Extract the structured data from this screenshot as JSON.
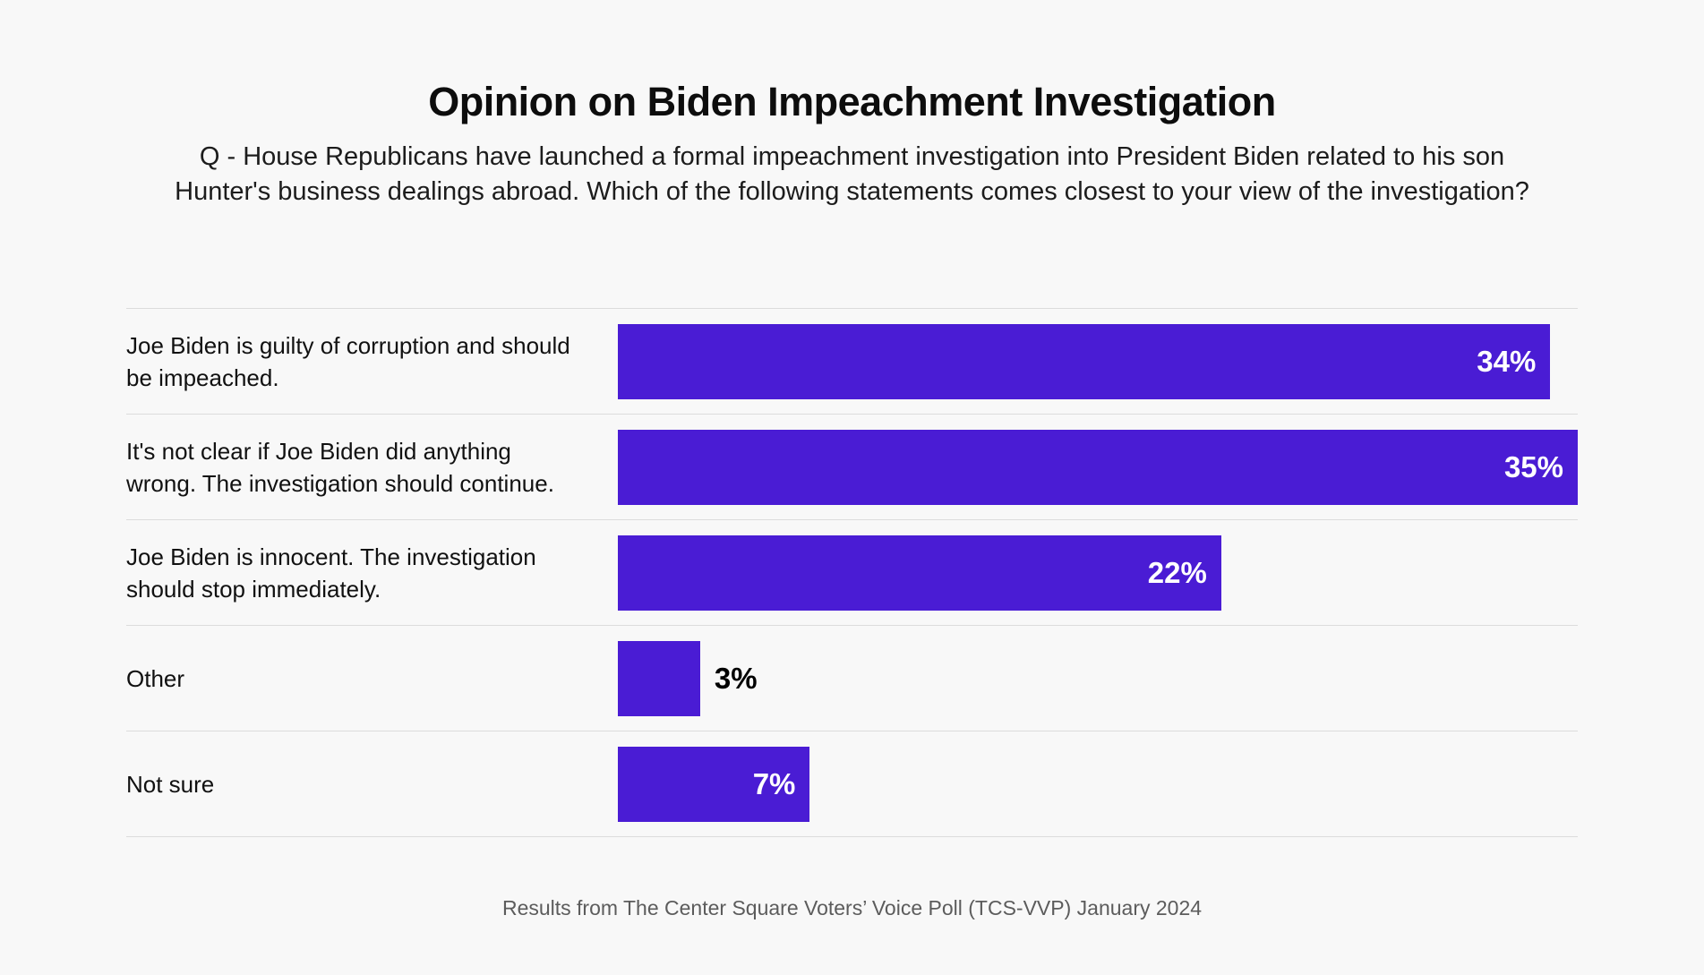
{
  "page": {
    "background": "#f8f8f8",
    "title": "Opinion on Biden Impeachment Investigation",
    "subtitle_lines": [
      "Q - House Republicans have launched a formal impeachment investigation into President Biden related to his son",
      "Hunter's business dealings abroad. Which of the following statements comes closest to your view of the investigation?"
    ],
    "footer": "Results from The Center Square Voters’ Voice Poll (TCS-VVP) January 2024"
  },
  "chart_data": {
    "type": "bar",
    "orientation": "horizontal",
    "title": "Opinion on Biden Impeachment Investigation",
    "question": "Q - House Republicans have launched a formal impeachment investigation into President Biden related to his son Hunter's business dealings abroad. Which of the following statements comes closest to your view of the investigation?",
    "categories": [
      "Joe Biden is guilty of corruption and should be impeached.",
      "It's not clear if Joe Biden did anything wrong. The investigation should continue.",
      "Joe Biden is innocent. The investigation should stop immediately.",
      "Other",
      "Not sure"
    ],
    "values": [
      34,
      35,
      22,
      3,
      7
    ],
    "unit": "%",
    "xlim": [
      0,
      35
    ],
    "grid": "row-dividers-only",
    "legend": "none",
    "bar_color": "#4A1CD4",
    "divider_color": "#dcdcdc",
    "value_label_color_inside": "#ffffff",
    "value_label_color_outside": "#000000",
    "source": "Results from The Center Square Voters’ Voice Poll (TCS-VVP) January 2024"
  }
}
